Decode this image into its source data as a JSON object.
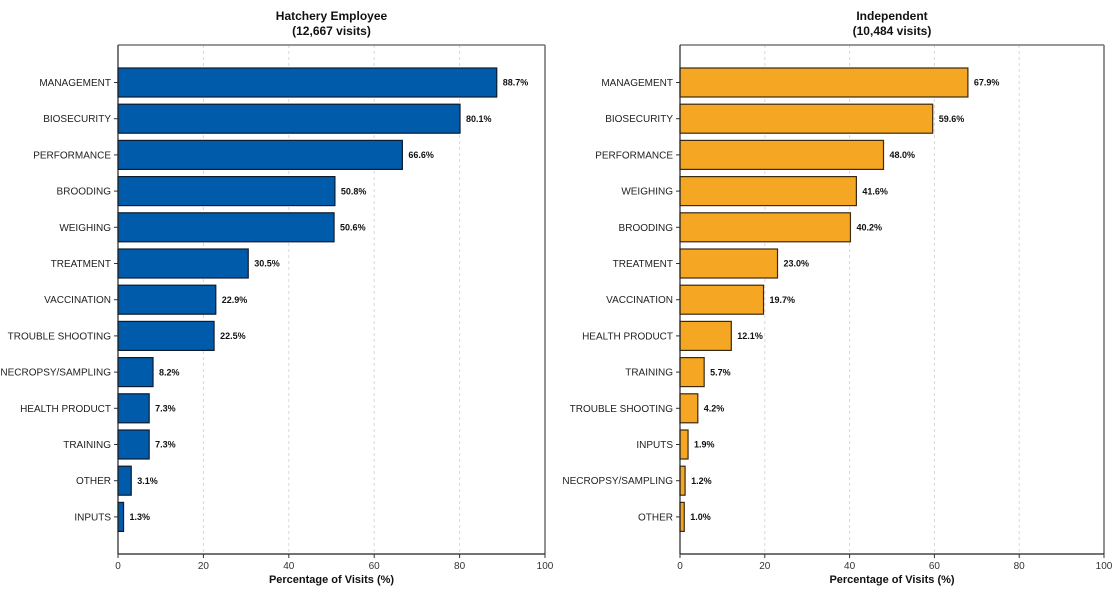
{
  "chart_data": [
    {
      "type": "bar",
      "orientation": "horizontal",
      "title": "Hatchery Employee",
      "subtitle": "(12,667 visits)",
      "xlabel": "Percentage of Visits (%)",
      "ylabel": "",
      "xlim": [
        0,
        100
      ],
      "xticks": [
        0,
        20,
        40,
        60,
        80,
        100
      ],
      "grid": "x-dashed",
      "color": "#005BAA",
      "edge_color": "#0d1b2e",
      "categories": [
        "MANAGEMENT",
        "BIOSECURITY",
        "PERFORMANCE",
        "BROODING",
        "WEIGHING",
        "TREATMENT",
        "VACCINATION",
        "TROUBLE SHOOTING",
        "NECROPSY/SAMPLING",
        "HEALTH PRODUCT",
        "TRAINING",
        "OTHER",
        "INPUTS"
      ],
      "values": [
        88.7,
        80.1,
        66.6,
        50.8,
        50.6,
        30.5,
        22.9,
        22.5,
        8.2,
        7.3,
        7.3,
        3.1,
        1.3
      ],
      "data_labels": [
        "88.7%",
        "80.1%",
        "66.6%",
        "50.8%",
        "50.6%",
        "30.5%",
        "22.9%",
        "22.5%",
        "8.2%",
        "7.3%",
        "7.3%",
        "3.1%",
        "1.3%"
      ]
    },
    {
      "type": "bar",
      "orientation": "horizontal",
      "title": "Independent",
      "subtitle": "(10,484 visits)",
      "xlabel": "Percentage of Visits (%)",
      "ylabel": "",
      "xlim": [
        0,
        100
      ],
      "xticks": [
        0,
        20,
        40,
        60,
        80,
        100
      ],
      "grid": "x-dashed",
      "color": "#F5A623",
      "edge_color": "#3a2a10",
      "categories": [
        "MANAGEMENT",
        "BIOSECURITY",
        "PERFORMANCE",
        "WEIGHING",
        "BROODING",
        "TREATMENT",
        "VACCINATION",
        "HEALTH PRODUCT",
        "TRAINING",
        "TROUBLE SHOOTING",
        "INPUTS",
        "NECROPSY/SAMPLING",
        "OTHER"
      ],
      "values": [
        67.9,
        59.6,
        48.0,
        41.6,
        40.2,
        23.0,
        19.7,
        12.1,
        5.7,
        4.2,
        1.9,
        1.2,
        1.0
      ],
      "data_labels": [
        "67.9%",
        "59.6%",
        "48.0%",
        "41.6%",
        "40.2%",
        "23.0%",
        "19.7%",
        "12.1%",
        "5.7%",
        "4.2%",
        "1.9%",
        "1.2%",
        "1.0%"
      ]
    }
  ]
}
